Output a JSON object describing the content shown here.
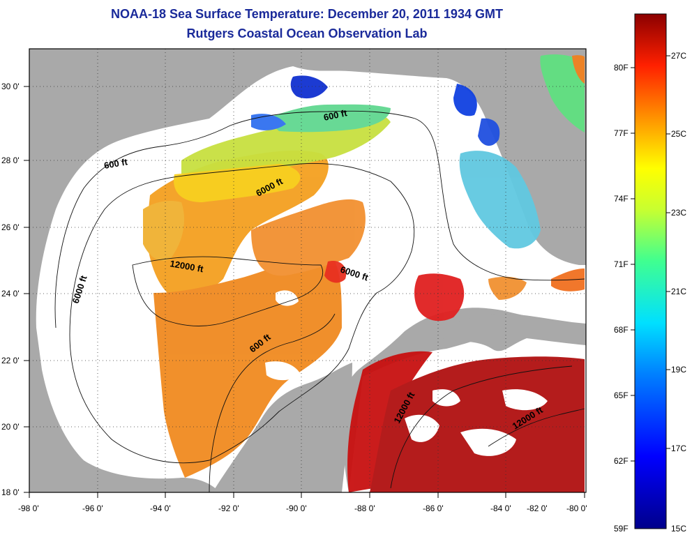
{
  "title": {
    "line1": "NOAA-18 Sea Surface Temperature:  December 20, 2011 1934 GMT",
    "line2": "Rutgers Coastal Ocean Observation Lab"
  },
  "axes": {
    "lon_labels": [
      "-98 0'",
      "-96 0'",
      "-94 0'",
      "-92 0'",
      "-90 0'",
      "-88 0'",
      "-86 0'",
      "-84 0'",
      "-82 0'",
      "-80 0'"
    ],
    "lat_labels": [
      "18 0'",
      "20 0'",
      "22 0'",
      "24 0'",
      "26 0'",
      "28 0'",
      "30 0'"
    ]
  },
  "contour_labels": [
    "600 ft",
    "600 ft",
    "6000 ft",
    "6000 ft",
    "12000 ft",
    "6000 ft",
    "600 ft",
    "12000 ft",
    "12000 ft"
  ],
  "colorbar": {
    "fahrenheit": [
      "80F",
      "77F",
      "74F",
      "71F",
      "68F",
      "65F",
      "62F",
      "59F"
    ],
    "celsius": [
      "27C",
      "25C",
      "23C",
      "21C",
      "19C",
      "17C",
      "15C"
    ]
  },
  "colors": {
    "land": "#a9a9a9",
    "ocean_nodata": "#ffffff",
    "title": "#1a2a9a",
    "warm": "#8b0000",
    "cold": "#00008b"
  }
}
